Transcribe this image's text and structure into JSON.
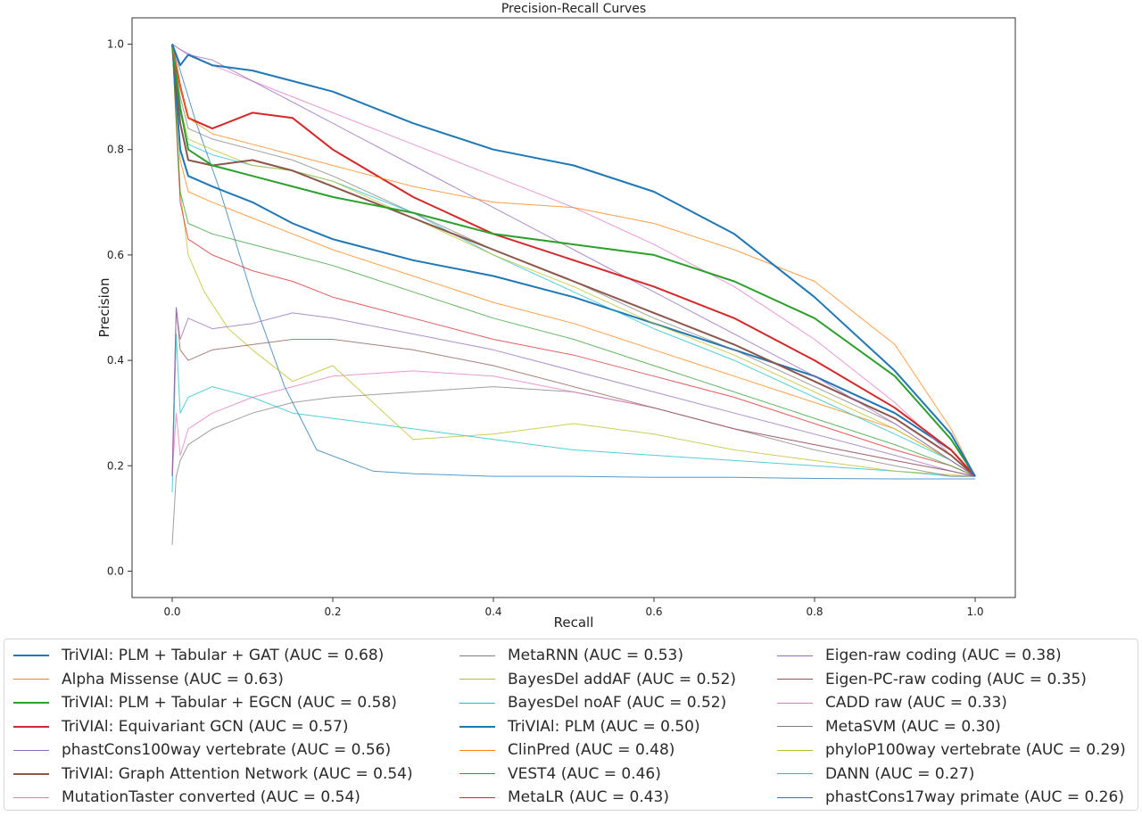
{
  "chart_data": {
    "type": "line",
    "title": "Precision-Recall Curves",
    "xlabel": "Recall",
    "ylabel": "Precision",
    "xlim": [
      -0.05,
      1.05
    ],
    "ylim": [
      -0.05,
      1.05
    ],
    "xticks": [
      "0.0",
      "0.2",
      "0.4",
      "0.6",
      "0.8",
      "1.0"
    ],
    "yticks": [
      "0.0",
      "0.2",
      "0.4",
      "0.6",
      "0.8",
      "1.0"
    ],
    "grid": false,
    "legend_position": "below",
    "series": [
      {
        "name": "TriVIAl: PLM + Tabular + GAT (AUC = 0.68)",
        "color": "#1f77b4",
        "width": 2.0,
        "x": [
          0,
          0.01,
          0.02,
          0.05,
          0.1,
          0.15,
          0.2,
          0.3,
          0.4,
          0.5,
          0.6,
          0.7,
          0.8,
          0.9,
          0.97,
          1.0
        ],
        "y": [
          1.0,
          0.96,
          0.98,
          0.96,
          0.95,
          0.93,
          0.91,
          0.85,
          0.8,
          0.77,
          0.72,
          0.64,
          0.52,
          0.38,
          0.26,
          0.18
        ]
      },
      {
        "name": "Alpha Missense (AUC = 0.63)",
        "color": "#ff7f0e",
        "width": 1.0,
        "x": [
          0,
          0.01,
          0.02,
          0.05,
          0.1,
          0.15,
          0.2,
          0.3,
          0.4,
          0.5,
          0.6,
          0.7,
          0.8,
          0.9,
          0.97,
          1.0
        ],
        "y": [
          1.0,
          0.92,
          0.86,
          0.83,
          0.81,
          0.79,
          0.77,
          0.73,
          0.7,
          0.69,
          0.66,
          0.61,
          0.55,
          0.43,
          0.27,
          0.18
        ]
      },
      {
        "name": "TriVIAl: PLM + Tabular + EGCN (AUC = 0.58)",
        "color": "#2ca02c",
        "width": 2.0,
        "x": [
          0,
          0.01,
          0.02,
          0.05,
          0.1,
          0.15,
          0.2,
          0.3,
          0.4,
          0.5,
          0.6,
          0.7,
          0.8,
          0.9,
          0.97,
          1.0
        ],
        "y": [
          1.0,
          0.88,
          0.8,
          0.77,
          0.75,
          0.73,
          0.71,
          0.68,
          0.64,
          0.62,
          0.6,
          0.55,
          0.48,
          0.37,
          0.25,
          0.18
        ]
      },
      {
        "name": "TriVIAl: Equivariant GCN (AUC = 0.57)",
        "color": "#d62728",
        "width": 2.0,
        "x": [
          0,
          0.01,
          0.02,
          0.05,
          0.1,
          0.15,
          0.2,
          0.3,
          0.4,
          0.5,
          0.6,
          0.7,
          0.8,
          0.9,
          0.97,
          1.0
        ],
        "y": [
          1.0,
          0.92,
          0.86,
          0.84,
          0.87,
          0.86,
          0.8,
          0.71,
          0.64,
          0.59,
          0.54,
          0.48,
          0.4,
          0.31,
          0.23,
          0.18
        ]
      },
      {
        "name": "phastCons100way vertebrate (AUC = 0.56)",
        "color": "#9467bd",
        "width": 1.0,
        "x": [
          0,
          0.01,
          0.02,
          0.05,
          0.1,
          0.15,
          0.2,
          0.3,
          0.4,
          0.5,
          0.6,
          0.7,
          0.8,
          0.9,
          0.97,
          1.0
        ],
        "y": [
          1.0,
          0.99,
          0.98,
          0.97,
          0.93,
          0.89,
          0.85,
          0.77,
          0.69,
          0.61,
          0.53,
          0.45,
          0.37,
          0.28,
          0.21,
          0.18
        ]
      },
      {
        "name": "TriVIAl: Graph Attention Network (AUC = 0.54)",
        "color": "#8c564b",
        "width": 2.0,
        "x": [
          0,
          0.01,
          0.02,
          0.05,
          0.1,
          0.15,
          0.2,
          0.3,
          0.4,
          0.5,
          0.6,
          0.7,
          0.8,
          0.9,
          0.97,
          1.0
        ],
        "y": [
          1.0,
          0.85,
          0.78,
          0.77,
          0.78,
          0.76,
          0.73,
          0.67,
          0.61,
          0.55,
          0.49,
          0.43,
          0.36,
          0.29,
          0.22,
          0.18
        ]
      },
      {
        "name": "MutationTaster converted (AUC = 0.54)",
        "color": "#e377c2",
        "width": 1.0,
        "x": [
          0,
          0.01,
          0.05,
          0.1,
          0.2,
          0.3,
          0.4,
          0.5,
          0.6,
          0.7,
          0.8,
          0.9,
          0.97,
          1.0
        ],
        "y": [
          1.0,
          0.99,
          0.96,
          0.93,
          0.87,
          0.81,
          0.75,
          0.69,
          0.62,
          0.54,
          0.44,
          0.32,
          0.22,
          0.18
        ]
      },
      {
        "name": "MetaRNN (AUC = 0.53)",
        "color": "#7f7f7f",
        "width": 1.0,
        "x": [
          0,
          0.01,
          0.02,
          0.05,
          0.1,
          0.15,
          0.2,
          0.3,
          0.4,
          0.5,
          0.6,
          0.7,
          0.8,
          0.9,
          0.97,
          1.0
        ],
        "y": [
          1.0,
          0.9,
          0.84,
          0.82,
          0.8,
          0.78,
          0.75,
          0.68,
          0.61,
          0.55,
          0.48,
          0.42,
          0.35,
          0.28,
          0.21,
          0.18
        ]
      },
      {
        "name": "BayesDel addAF (AUC = 0.52)",
        "color": "#bcbd22",
        "width": 1.0,
        "x": [
          0,
          0.01,
          0.02,
          0.05,
          0.1,
          0.15,
          0.2,
          0.3,
          0.4,
          0.5,
          0.6,
          0.7,
          0.8,
          0.9,
          0.97,
          1.0
        ],
        "y": [
          1.0,
          0.88,
          0.82,
          0.8,
          0.77,
          0.76,
          0.74,
          0.67,
          0.6,
          0.54,
          0.47,
          0.41,
          0.34,
          0.27,
          0.21,
          0.18
        ]
      },
      {
        "name": "BayesDel noAF (AUC = 0.52)",
        "color": "#17becf",
        "width": 1.0,
        "x": [
          0,
          0.01,
          0.02,
          0.05,
          0.1,
          0.15,
          0.2,
          0.3,
          0.4,
          0.5,
          0.6,
          0.7,
          0.8,
          0.9,
          0.97,
          1.0
        ],
        "y": [
          1.0,
          0.87,
          0.81,
          0.79,
          0.77,
          0.76,
          0.74,
          0.68,
          0.6,
          0.53,
          0.46,
          0.4,
          0.33,
          0.26,
          0.21,
          0.18
        ]
      },
      {
        "name": "TriVIAl: PLM (AUC = 0.50)",
        "color": "#1f77b4",
        "width": 2.0,
        "x": [
          0,
          0.01,
          0.02,
          0.05,
          0.1,
          0.15,
          0.2,
          0.3,
          0.4,
          0.5,
          0.6,
          0.7,
          0.8,
          0.9,
          0.97,
          1.0
        ],
        "y": [
          1.0,
          0.8,
          0.75,
          0.73,
          0.7,
          0.66,
          0.63,
          0.59,
          0.56,
          0.52,
          0.47,
          0.42,
          0.37,
          0.3,
          0.23,
          0.18
        ]
      },
      {
        "name": "ClinPred (AUC = 0.48)",
        "color": "#ff7f0e",
        "width": 1.0,
        "x": [
          0,
          0.01,
          0.02,
          0.05,
          0.1,
          0.15,
          0.2,
          0.3,
          0.4,
          0.5,
          0.6,
          0.7,
          0.8,
          0.9,
          0.97,
          1.0
        ],
        "y": [
          1.0,
          0.78,
          0.72,
          0.7,
          0.67,
          0.64,
          0.61,
          0.56,
          0.51,
          0.47,
          0.42,
          0.37,
          0.32,
          0.27,
          0.21,
          0.18
        ]
      },
      {
        "name": "VEST4 (AUC = 0.46)",
        "color": "#2ca02c",
        "width": 1.0,
        "x": [
          0,
          0.01,
          0.02,
          0.05,
          0.1,
          0.15,
          0.2,
          0.3,
          0.4,
          0.5,
          0.6,
          0.7,
          0.8,
          0.9,
          0.97,
          1.0
        ],
        "y": [
          1.0,
          0.72,
          0.66,
          0.64,
          0.62,
          0.6,
          0.58,
          0.53,
          0.48,
          0.44,
          0.39,
          0.34,
          0.29,
          0.24,
          0.2,
          0.18
        ]
      },
      {
        "name": "MetaLR (AUC = 0.43)",
        "color": "#d62728",
        "width": 1.0,
        "x": [
          0,
          0.01,
          0.02,
          0.05,
          0.1,
          0.15,
          0.2,
          0.3,
          0.4,
          0.5,
          0.6,
          0.7,
          0.8,
          0.9,
          0.97,
          1.0
        ],
        "y": [
          1.0,
          0.7,
          0.63,
          0.6,
          0.57,
          0.55,
          0.52,
          0.48,
          0.44,
          0.41,
          0.37,
          0.33,
          0.28,
          0.23,
          0.2,
          0.18
        ]
      },
      {
        "name": "Eigen-raw coding (AUC = 0.38)",
        "color": "#9467bd",
        "width": 1.0,
        "x": [
          0,
          0.005,
          0.01,
          0.02,
          0.05,
          0.1,
          0.15,
          0.2,
          0.3,
          0.4,
          0.5,
          0.6,
          0.7,
          0.8,
          0.9,
          0.97,
          1.0
        ],
        "y": [
          0.18,
          0.5,
          0.44,
          0.48,
          0.46,
          0.47,
          0.49,
          0.48,
          0.45,
          0.42,
          0.38,
          0.34,
          0.3,
          0.26,
          0.22,
          0.19,
          0.18
        ]
      },
      {
        "name": "Eigen-PC-raw coding (AUC = 0.35)",
        "color": "#8c564b",
        "width": 1.0,
        "x": [
          0,
          0.005,
          0.01,
          0.02,
          0.05,
          0.1,
          0.15,
          0.2,
          0.3,
          0.4,
          0.5,
          0.6,
          0.7,
          0.8,
          0.9,
          0.97,
          1.0
        ],
        "y": [
          0.18,
          0.5,
          0.42,
          0.4,
          0.42,
          0.43,
          0.44,
          0.44,
          0.42,
          0.39,
          0.35,
          0.31,
          0.27,
          0.24,
          0.21,
          0.19,
          0.18
        ]
      },
      {
        "name": "CADD raw (AUC = 0.33)",
        "color": "#e377c2",
        "width": 1.0,
        "x": [
          0,
          0.005,
          0.01,
          0.02,
          0.05,
          0.1,
          0.15,
          0.2,
          0.3,
          0.4,
          0.5,
          0.6,
          0.7,
          0.8,
          0.9,
          0.97,
          1.0
        ],
        "y": [
          0.18,
          0.3,
          0.22,
          0.27,
          0.3,
          0.33,
          0.35,
          0.37,
          0.38,
          0.37,
          0.34,
          0.31,
          0.27,
          0.24,
          0.21,
          0.19,
          0.18
        ]
      },
      {
        "name": "MetaSVM (AUC = 0.30)",
        "color": "#7f7f7f",
        "width": 1.0,
        "x": [
          0,
          0.005,
          0.01,
          0.02,
          0.05,
          0.1,
          0.15,
          0.2,
          0.3,
          0.4,
          0.5,
          0.6,
          0.7,
          0.8,
          0.9,
          0.97,
          1.0
        ],
        "y": [
          0.05,
          0.18,
          0.21,
          0.24,
          0.27,
          0.3,
          0.32,
          0.33,
          0.34,
          0.35,
          0.34,
          0.31,
          0.27,
          0.23,
          0.2,
          0.18,
          0.18
        ]
      },
      {
        "name": "phyloP100way vertebrate (AUC = 0.29)",
        "color": "#bcbd22",
        "width": 1.0,
        "x": [
          0,
          0.01,
          0.02,
          0.04,
          0.07,
          0.1,
          0.15,
          0.2,
          0.25,
          0.3,
          0.4,
          0.5,
          0.6,
          0.7,
          0.8,
          0.9,
          1.0
        ],
        "y": [
          1.0,
          0.72,
          0.6,
          0.53,
          0.46,
          0.42,
          0.36,
          0.39,
          0.32,
          0.25,
          0.26,
          0.28,
          0.26,
          0.23,
          0.21,
          0.19,
          0.18
        ]
      },
      {
        "name": "DANN (AUC = 0.27)",
        "color": "#17becf",
        "width": 1.0,
        "x": [
          0,
          0.005,
          0.01,
          0.02,
          0.05,
          0.1,
          0.15,
          0.2,
          0.3,
          0.4,
          0.5,
          0.6,
          0.7,
          0.8,
          0.9,
          0.97,
          1.0
        ],
        "y": [
          0.15,
          0.45,
          0.3,
          0.33,
          0.35,
          0.33,
          0.3,
          0.29,
          0.27,
          0.25,
          0.23,
          0.22,
          0.21,
          0.2,
          0.19,
          0.18,
          0.18
        ]
      },
      {
        "name": "phastCons17way primate (AUC = 0.26)",
        "color": "#1f77b4",
        "width": 1.0,
        "x": [
          0,
          0.01,
          0.03,
          0.06,
          0.1,
          0.14,
          0.18,
          0.25,
          0.3,
          0.4,
          0.5,
          0.6,
          0.7,
          0.8,
          0.9,
          1.0
        ],
        "y": [
          1.0,
          0.95,
          0.85,
          0.72,
          0.52,
          0.35,
          0.23,
          0.19,
          0.185,
          0.18,
          0.18,
          0.178,
          0.178,
          0.176,
          0.175,
          0.175
        ]
      }
    ]
  }
}
